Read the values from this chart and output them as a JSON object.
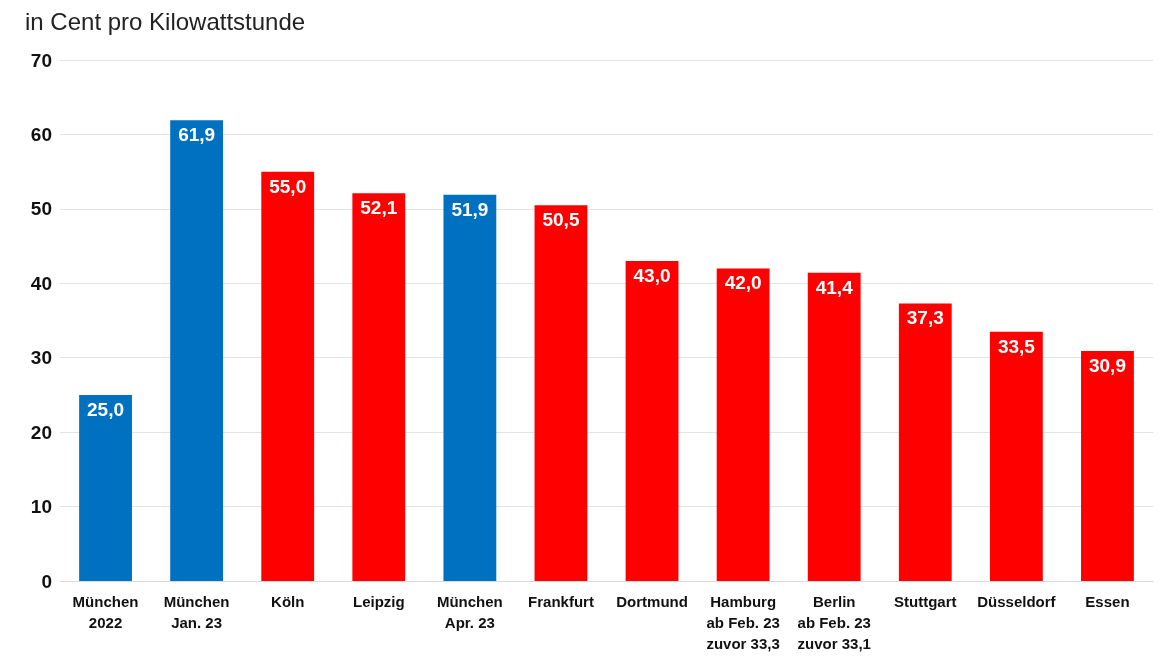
{
  "chart_data": {
    "type": "bar",
    "title": "in Cent pro Kilowattstunde",
    "categories": [
      "München\n2022",
      "München\nJan. 23",
      "Köln",
      "Leipzig",
      "München\nApr. 23",
      "Frankfurt",
      "Dortmund",
      "Hamburg\nab Feb. 23\nzuvor 33,3",
      "Berlin\nab Feb. 23\nzuvor 33,1",
      "Stuttgart",
      "Düsseldorf",
      "Essen"
    ],
    "values": [
      25.0,
      61.9,
      55.0,
      52.1,
      51.9,
      50.5,
      43.0,
      42.0,
      41.4,
      37.3,
      33.5,
      30.9
    ],
    "value_labels": [
      "25,0",
      "61,9",
      "55,0",
      "52,1",
      "51,9",
      "50,5",
      "43,0",
      "42,0",
      "41,4",
      "37,3",
      "33,5",
      "30,9"
    ],
    "colors": [
      "#0070c0",
      "#0070c0",
      "#ff0000",
      "#ff0000",
      "#0070c0",
      "#ff0000",
      "#ff0000",
      "#ff0000",
      "#ff0000",
      "#ff0000",
      "#ff0000",
      "#ff0000"
    ],
    "ylim": [
      0,
      70
    ],
    "yticks": [
      0,
      10,
      20,
      30,
      40,
      50,
      60,
      70
    ],
    "grid": "y"
  }
}
